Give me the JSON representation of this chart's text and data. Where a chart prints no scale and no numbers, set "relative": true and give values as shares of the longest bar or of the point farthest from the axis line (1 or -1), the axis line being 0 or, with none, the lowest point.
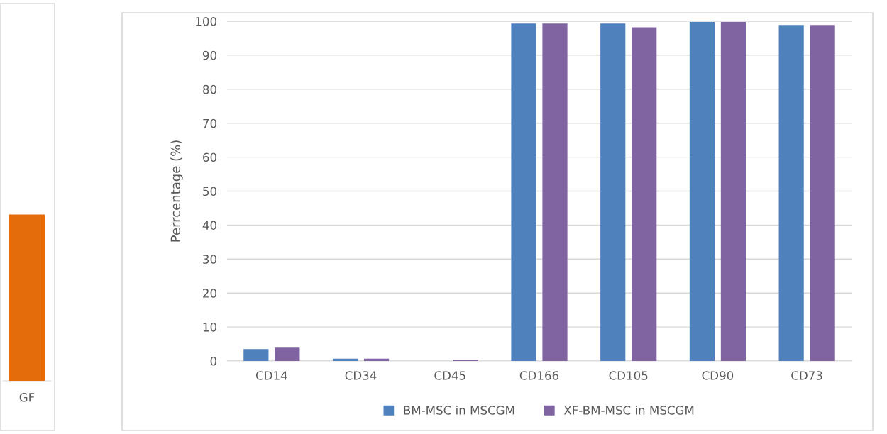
{
  "chart_data": [
    {
      "type": "bar",
      "relative": true,
      "categories": [
        "GF"
      ],
      "values": [
        1
      ],
      "color": "#e46c0a"
    },
    {
      "type": "bar",
      "ylabel": "Perrcentage (%)",
      "categories": [
        "CD14",
        "CD34",
        "CD45",
        "CD166",
        "CD105",
        "CD90",
        "CD73"
      ],
      "series": [
        {
          "name": "BM-MSC in MSCGM",
          "color": "#4f81bd",
          "values": [
            3.5,
            0.7,
            0,
            99.3,
            99.3,
            99.8,
            98.9
          ]
        },
        {
          "name": "XF-BM-MSC in MSCGM",
          "color": "#8064a2",
          "values": [
            3.9,
            0.7,
            0.4,
            99.3,
            98.2,
            99.8,
            98.9
          ]
        }
      ],
      "ylim": [
        0,
        100
      ],
      "yticks": [
        0,
        10,
        20,
        30,
        40,
        50,
        60,
        70,
        80,
        90,
        100
      ],
      "grid": "y",
      "legend": "bottom"
    }
  ]
}
